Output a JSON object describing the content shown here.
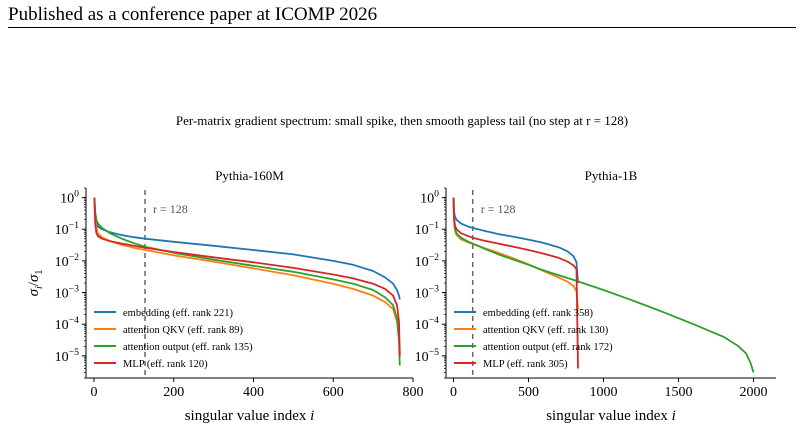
{
  "page_header": "Published as a conference paper at ICOMP 2026",
  "figure_title": "Per-matrix gradient spectrum: small spike, then smooth gapless tail (no step at r = 128)",
  "colors": {
    "embedding": "#1f77b4",
    "attention_qkv": "#ff7f0e",
    "attention_output": "#2ca02c",
    "mlp": "#d62728",
    "reference_line": "#666666"
  },
  "chart_data": [
    {
      "type": "line",
      "title": "Pythia-160M",
      "xlabel": "singular value index i",
      "ylabel": "σi/σ1",
      "y_scale": "log",
      "xlim": [
        -20,
        800
      ],
      "ylim": [
        2e-06,
        2
      ],
      "x_ticks": [
        0,
        200,
        400,
        600,
        800
      ],
      "x_tick_labels": [
        "0",
        "200",
        "400",
        "600",
        "800"
      ],
      "y_ticks": [
        1,
        0.1,
        0.01,
        0.001,
        0.0001,
        1e-05
      ],
      "y_tick_labels": [
        "10^0",
        "10^-1",
        "10^-2",
        "10^-3",
        "10^-4",
        "10^-5"
      ],
      "reference_line": {
        "x": 128,
        "label": "r = 128"
      },
      "legend_position": "lower-left",
      "grid": false,
      "series": [
        {
          "name": "embedding (eff. rank 221)",
          "color_key": "embedding",
          "x": [
            1,
            3,
            6,
            10,
            20,
            40,
            70,
            100,
            128,
            200,
            300,
            400,
            500,
            600,
            650,
            700,
            730,
            750,
            760,
            765,
            767
          ],
          "y": [
            1,
            0.3,
            0.16,
            0.12,
            0.1,
            0.08,
            0.065,
            0.056,
            0.05,
            0.04,
            0.03,
            0.022,
            0.016,
            0.01,
            0.0075,
            0.0048,
            0.003,
            0.0019,
            0.0012,
            0.0008,
            0.0006
          ]
        },
        {
          "name": "attention QKV (eff. rank 89)",
          "color_key": "attention_qkv",
          "x": [
            1,
            3,
            6,
            10,
            20,
            40,
            70,
            100,
            128,
            200,
            300,
            400,
            500,
            600,
            650,
            700,
            730,
            750,
            760,
            765,
            767
          ],
          "y": [
            1,
            0.2,
            0.11,
            0.075,
            0.055,
            0.042,
            0.032,
            0.026,
            0.022,
            0.015,
            0.0095,
            0.0058,
            0.0035,
            0.0019,
            0.0013,
            0.0008,
            0.0005,
            0.0003,
            0.00012,
            4e-05,
            1.2e-05
          ]
        },
        {
          "name": "attention output (eff. rank 135)",
          "color_key": "attention_output",
          "x": [
            1,
            3,
            6,
            10,
            20,
            40,
            70,
            100,
            128,
            200,
            300,
            400,
            500,
            600,
            650,
            700,
            730,
            750,
            760,
            765,
            767
          ],
          "y": [
            1,
            0.35,
            0.2,
            0.15,
            0.11,
            0.075,
            0.05,
            0.036,
            0.028,
            0.018,
            0.011,
            0.007,
            0.0045,
            0.0026,
            0.0019,
            0.0012,
            0.0007,
            0.0004,
            0.00015,
            3e-05,
            5e-06
          ]
        },
        {
          "name": "MLP (eff. rank 120)",
          "color_key": "mlp",
          "x": [
            1,
            3,
            6,
            10,
            20,
            40,
            70,
            100,
            128,
            200,
            300,
            400,
            500,
            600,
            650,
            700,
            730,
            750,
            760,
            765,
            767
          ],
          "y": [
            1,
            0.15,
            0.075,
            0.06,
            0.05,
            0.042,
            0.035,
            0.03,
            0.026,
            0.019,
            0.013,
            0.009,
            0.006,
            0.0037,
            0.0028,
            0.0019,
            0.0013,
            0.0008,
            0.0004,
            0.00012,
            1e-05
          ]
        }
      ]
    },
    {
      "type": "line",
      "title": "Pythia-1B",
      "xlabel": "singular value index i",
      "ylabel": "",
      "y_scale": "log",
      "xlim": [
        -50,
        2150
      ],
      "ylim": [
        2e-06,
        2
      ],
      "x_ticks": [
        0,
        500,
        1000,
        1500,
        2000
      ],
      "x_tick_labels": [
        "0",
        "500",
        "1000",
        "1500",
        "2000"
      ],
      "y_ticks": [
        1,
        0.1,
        0.01,
        0.001,
        0.0001,
        1e-05
      ],
      "reference_line": {
        "x": 128,
        "label": "r = 128"
      },
      "legend_position": "lower-left",
      "grid": false,
      "series": [
        {
          "name": "embedding (eff. rank 358)",
          "color_key": "embedding",
          "x": [
            1,
            3,
            6,
            10,
            20,
            50,
            100,
            128,
            200,
            300,
            400,
            500,
            600,
            700,
            760,
            800,
            820,
            830
          ],
          "y": [
            1,
            0.45,
            0.3,
            0.25,
            0.2,
            0.15,
            0.12,
            0.11,
            0.09,
            0.07,
            0.058,
            0.047,
            0.037,
            0.027,
            0.02,
            0.014,
            0.009,
            0.002
          ]
        },
        {
          "name": "attention QKV (eff. rank 130)",
          "color_key": "attention_qkv",
          "x": [
            1,
            3,
            6,
            10,
            20,
            50,
            100,
            128,
            200,
            300,
            400,
            500,
            600,
            700,
            760,
            800,
            820,
            830
          ],
          "y": [
            1,
            0.25,
            0.13,
            0.09,
            0.066,
            0.048,
            0.038,
            0.034,
            0.026,
            0.018,
            0.012,
            0.0078,
            0.0048,
            0.003,
            0.0022,
            0.0016,
            0.0011,
            0.0003
          ]
        },
        {
          "name": "attention output (eff. rank 172)",
          "color_key": "attention_output",
          "x": [
            1,
            3,
            6,
            10,
            20,
            50,
            100,
            128,
            200,
            300,
            400,
            500,
            600,
            800,
            1000,
            1200,
            1400,
            1600,
            1800,
            1900,
            1950,
            1980,
            2000
          ],
          "y": [
            1,
            0.3,
            0.15,
            0.1,
            0.075,
            0.054,
            0.04,
            0.035,
            0.025,
            0.016,
            0.011,
            0.0075,
            0.005,
            0.0025,
            0.0012,
            0.00055,
            0.00024,
            0.0001,
            4e-05,
            2e-05,
            1.2e-05,
            6e-06,
            3e-06
          ]
        },
        {
          "name": "MLP (eff. rank 305)",
          "color_key": "mlp",
          "x": [
            1,
            3,
            6,
            10,
            20,
            50,
            100,
            128,
            200,
            300,
            400,
            500,
            600,
            700,
            760,
            800,
            820,
            830
          ],
          "y": [
            1,
            0.3,
            0.18,
            0.13,
            0.1,
            0.075,
            0.06,
            0.054,
            0.044,
            0.035,
            0.028,
            0.022,
            0.017,
            0.0125,
            0.0095,
            0.0072,
            0.0055,
            4e-06
          ]
        }
      ]
    }
  ]
}
